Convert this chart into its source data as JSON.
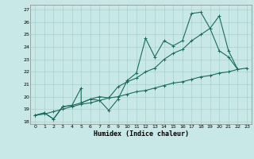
{
  "xlabel": "Humidex (Indice chaleur)",
  "bg_color": "#c8e8e8",
  "grid_color": "#a8d0d0",
  "line_color": "#1a6b5a",
  "xlim": [
    -0.5,
    23.5
  ],
  "ylim": [
    17.8,
    27.4
  ],
  "xticks": [
    0,
    1,
    2,
    3,
    4,
    5,
    6,
    7,
    8,
    9,
    10,
    11,
    12,
    13,
    14,
    15,
    16,
    17,
    18,
    19,
    20,
    21,
    22,
    23
  ],
  "yticks": [
    18,
    19,
    20,
    21,
    22,
    23,
    24,
    25,
    26,
    27
  ],
  "line1_x": [
    0,
    1,
    2,
    3,
    4,
    5,
    5,
    6,
    7,
    8,
    9,
    10,
    11,
    12,
    13,
    14,
    15,
    16,
    17,
    18,
    19,
    20,
    21,
    22
  ],
  "line1_y": [
    18.5,
    18.7,
    18.2,
    19.2,
    19.3,
    20.7,
    19.5,
    19.8,
    19.7,
    18.9,
    19.8,
    21.3,
    21.9,
    24.7,
    23.2,
    24.5,
    24.1,
    24.5,
    26.7,
    26.8,
    25.5,
    23.7,
    23.2,
    22.2
  ],
  "line2_x": [
    0,
    1,
    2,
    3,
    4,
    5,
    6,
    7,
    8,
    9,
    10,
    11,
    12,
    13,
    14,
    15,
    16,
    17,
    18,
    19,
    20,
    21,
    22
  ],
  "line2_y": [
    18.5,
    18.7,
    18.2,
    19.2,
    19.3,
    19.5,
    19.8,
    20.0,
    19.9,
    20.8,
    21.2,
    21.5,
    22.0,
    22.3,
    23.0,
    23.5,
    23.8,
    24.5,
    25.0,
    25.5,
    26.5,
    23.7,
    22.2
  ],
  "line3_x": [
    0,
    1,
    2,
    3,
    4,
    5,
    6,
    7,
    8,
    9,
    10,
    11,
    12,
    13,
    14,
    15,
    16,
    17,
    18,
    19,
    20,
    21,
    22,
    23
  ],
  "line3_y": [
    18.5,
    18.6,
    18.8,
    19.0,
    19.2,
    19.4,
    19.5,
    19.7,
    19.9,
    20.0,
    20.2,
    20.4,
    20.5,
    20.7,
    20.9,
    21.1,
    21.2,
    21.4,
    21.6,
    21.7,
    21.9,
    22.0,
    22.2,
    22.3
  ]
}
